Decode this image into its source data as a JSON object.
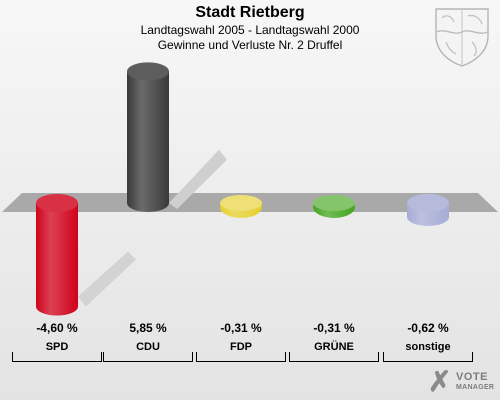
{
  "header": {
    "title": "Stadt Rietberg",
    "subtitle": "Landtagswahl 2005 - Landtagswahl 2000",
    "subtitle2": "Gewinne und Verluste Nr. 2 Druffel"
  },
  "logo": {
    "text1": "VOTE",
    "text2": "MANAGER"
  },
  "chart_data": {
    "type": "bar",
    "title": "Stadt Rietberg",
    "subtitle": "Landtagswahl 2005 - Landtagswahl 2000 / Gewinne und Verluste Nr. 2 Druffel",
    "categories": [
      "SPD",
      "CDU",
      "FDP",
      "GRÜNE",
      "sonstige"
    ],
    "values": [
      -4.6,
      5.85,
      -0.31,
      -0.31,
      -0.62
    ],
    "value_labels": [
      "-4,60 %",
      "5,85 %",
      "-0,31 %",
      "-0,31 %",
      "-0,62 %"
    ],
    "colors": [
      "#d0021b",
      "#3a3a3a",
      "#e6cf2c",
      "#41a51c",
      "#a6acd4"
    ],
    "unit": "%",
    "ylim": [
      -6,
      6
    ],
    "legend": "none",
    "grid": false
  }
}
